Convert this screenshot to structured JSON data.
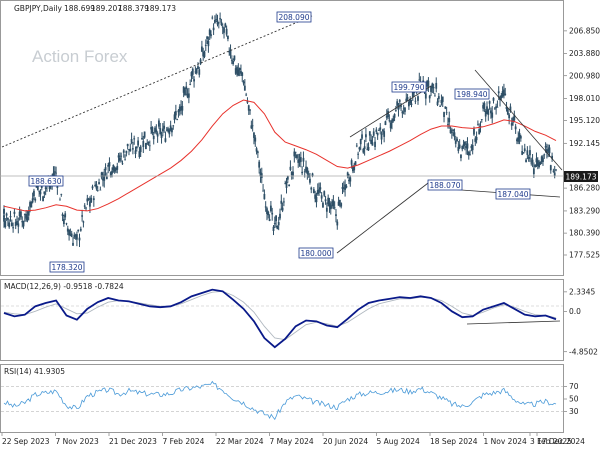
{
  "chart_data": [
    {
      "panel": "price",
      "type": "candlestick",
      "title": "GBPJPY,Daily",
      "ohlc": {
        "open": "188.699",
        "high": "189.207",
        "low": "188.379",
        "close": "189.173"
      },
      "watermark": "Action Forex",
      "ylim": [
        175.3,
        210.5
      ],
      "y_ticks": [
        "206.850",
        "203.880",
        "200.980",
        "198.010",
        "195.120",
        "192.145",
        "189.173",
        "186.280",
        "183.290",
        "180.390",
        "177.525"
      ],
      "y_tick_values": [
        206.85,
        203.88,
        200.98,
        198.01,
        195.12,
        192.145,
        189.173,
        186.28,
        183.29,
        180.39,
        177.525
      ],
      "last_price": "189.173",
      "x": [
        "2023-09-22",
        "2023-10-06",
        "2023-10-20",
        "2023-11-03",
        "2023-11-17",
        "2023-12-01",
        "2023-12-15",
        "2023-12-29",
        "2024-01-12",
        "2024-01-26",
        "2024-02-09",
        "2024-02-23",
        "2024-03-08",
        "2024-03-22",
        "2024-04-05",
        "2024-04-19",
        "2024-05-03",
        "2024-05-17",
        "2024-05-31",
        "2024-06-14",
        "2024-06-28",
        "2024-07-05",
        "2024-07-12",
        "2024-07-19",
        "2024-07-26",
        "2024-08-02",
        "2024-08-05",
        "2024-08-09",
        "2024-08-16",
        "2024-08-23",
        "2024-08-30",
        "2024-09-06",
        "2024-09-11",
        "2024-09-20",
        "2024-09-27",
        "2024-10-04",
        "2024-10-11",
        "2024-10-18",
        "2024-10-25",
        "2024-11-01",
        "2024-11-08",
        "2024-11-15",
        "2024-11-22",
        "2024-11-29",
        "2024-12-03",
        "2024-12-13",
        "2024-12-20",
        "2024-12-27",
        "2025-01-03",
        "2025-01-10",
        "2025-01-17",
        "2025-01-24",
        "2025-01-31",
        "2025-02-07"
      ],
      "close": [
        182.8,
        181.9,
        182.6,
        185.6,
        186.3,
        188.2,
        180.8,
        179.4,
        184.2,
        186.6,
        188.8,
        189.7,
        191.5,
        192.2,
        192.9,
        193.4,
        194.2,
        196.8,
        200.4,
        203.1,
        207.8,
        207.3,
        203.1,
        200.6,
        193.0,
        185.6,
        180.5,
        186.0,
        189.9,
        188.5,
        185.8,
        184.0,
        182.8,
        187.9,
        191.2,
        192.6,
        193.3,
        194.8,
        196.9,
        197.2,
        199.7,
        199.3,
        197.1,
        193.2,
        191.1,
        191.9,
        195.6,
        197.1,
        198.9,
        194.2,
        190.8,
        189.6,
        190.9,
        189.2
      ],
      "series": [
        {
          "name": "",
          "values": [
            183.9,
            183.6,
            183.3,
            183.4,
            183.7,
            184.1,
            183.9,
            183.4,
            183.3,
            183.6,
            184.2,
            184.9,
            185.7,
            186.5,
            187.3,
            188.1,
            188.9,
            189.9,
            191.1,
            192.6,
            194.4,
            196.0,
            197.1,
            197.8,
            197.5,
            196.0,
            193.6,
            192.3,
            191.8,
            191.3,
            190.7,
            189.9,
            189.1,
            188.9,
            189.3,
            189.9,
            190.5,
            191.1,
            191.8,
            192.5,
            193.3,
            194.0,
            194.4,
            194.4,
            194.2,
            194.1,
            194.3,
            194.7,
            195.2,
            195.0,
            194.4,
            193.7,
            193.2,
            192.5
          ]
        }
      ],
      "annotations": [
        "208.090",
        "199.790",
        "198.940",
        "188.630",
        "188.070",
        "187.040",
        "180.000",
        "178.320"
      ]
    },
    {
      "panel": "macd",
      "type": "line",
      "title": "MACD(12,26,9) -0.9518 -0.7824",
      "ylim": [
        -5.6,
        3.4
      ],
      "y_ticks": [
        "2.3345",
        "0.0",
        "-4.8502"
      ],
      "y_tick_values": [
        2.3345,
        0.0,
        -4.8502
      ],
      "series": [
        {
          "name": "",
          "values": [
            -0.2,
            -0.6,
            -0.4,
            0.6,
            1.0,
            1.3,
            -0.5,
            -1.0,
            0.3,
            1.1,
            1.6,
            1.3,
            1.2,
            0.9,
            0.6,
            0.5,
            0.6,
            1.1,
            1.8,
            2.2,
            2.6,
            2.4,
            1.4,
            0.3,
            -1.2,
            -3.2,
            -4.3,
            -3.3,
            -1.8,
            -1.1,
            -1.2,
            -1.7,
            -1.9,
            -0.9,
            0.2,
            1.0,
            1.3,
            1.5,
            1.7,
            1.6,
            1.8,
            1.6,
            1.0,
            0.0,
            -0.7,
            -0.6,
            0.2,
            0.6,
            1.0,
            0.3,
            -0.4,
            -0.6,
            -0.5,
            -0.95
          ]
        },
        {
          "name": "",
          "values": [
            -0.1,
            -0.3,
            -0.4,
            0.0,
            0.5,
            0.9,
            0.3,
            -0.3,
            -0.2,
            0.5,
            1.1,
            1.3,
            1.2,
            1.0,
            0.8,
            0.6,
            0.6,
            0.9,
            1.4,
            1.9,
            2.3,
            2.4,
            1.9,
            1.1,
            -0.1,
            -1.8,
            -3.2,
            -3.4,
            -2.5,
            -1.6,
            -1.3,
            -1.5,
            -1.8,
            -1.3,
            -0.5,
            0.3,
            0.9,
            1.2,
            1.5,
            1.5,
            1.7,
            1.6,
            1.3,
            0.6,
            -0.2,
            -0.5,
            -0.1,
            0.4,
            0.8,
            0.5,
            0.0,
            -0.4,
            -0.5,
            -0.78
          ]
        }
      ]
    },
    {
      "panel": "rsi",
      "type": "line",
      "title": "RSI(14) 41.9305",
      "ylim": [
        0,
        100
      ],
      "y_ticks": [
        "70",
        "50",
        "30"
      ],
      "y_tick_values": [
        70,
        50,
        30
      ],
      "series": [
        {
          "name": "",
          "values": [
            45,
            38,
            44,
            57,
            60,
            63,
            40,
            34,
            55,
            61,
            65,
            58,
            63,
            60,
            58,
            57,
            59,
            65,
            68,
            70,
            74,
            65,
            52,
            44,
            34,
            26,
            20,
            45,
            55,
            50,
            44,
            40,
            37,
            50,
            57,
            60,
            61,
            63,
            65,
            62,
            67,
            60,
            52,
            42,
            38,
            45,
            57,
            60,
            64,
            50,
            40,
            42,
            46,
            41.93
          ]
        }
      ]
    }
  ],
  "x_axis_labels": [
    "22 Sep 2023",
    "7 Nov 2023",
    "21 Dec 2023",
    "7 Feb 2024",
    "22 Mar 2024",
    "7 May 2024",
    "20 Jun 2024",
    "5 Aug 2024",
    "18 Sep 2024",
    "1 Nov 2024",
    "17 Dec 2024",
    "3 Feb 2025"
  ],
  "colors": {
    "candle": "#2e4f66",
    "sma": "#e8322c",
    "macd": "#0a1a8a",
    "signal": "#b0b8c0",
    "rsi": "#4a9ad8",
    "trendline": "#2b2b2b",
    "label_border": "#1f3b8c",
    "price_box": "#1a1a1a"
  }
}
